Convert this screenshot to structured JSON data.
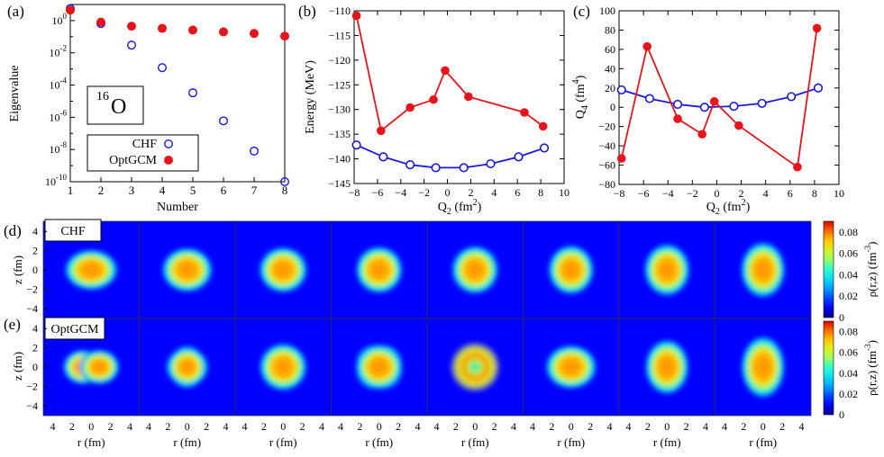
{
  "colors": {
    "chf": "#1a1ad6",
    "optgcm": "#e8141a"
  },
  "chart_data": [
    {
      "id": "a",
      "panel_label": "(a)",
      "type": "scatter",
      "title": "",
      "annotation_sup": "16",
      "annotation_main": "O",
      "xlabel": "Number",
      "ylabel": "Eigenvalue",
      "x_ticks": [
        "1",
        "2",
        "3",
        "4",
        "5",
        "6",
        "7",
        "8"
      ],
      "xlim": [
        1,
        8
      ],
      "y_scale": "log",
      "ylim_exp": [
        -10,
        1
      ],
      "y_tick_exps": [
        0,
        -2,
        -4,
        -6,
        -8,
        -10
      ],
      "legend": [
        {
          "name": "CHF",
          "marker": "open-circle"
        },
        {
          "name": "OptGCM",
          "marker": "filled-circle"
        }
      ],
      "legend_position": "bottom-left",
      "series": [
        {
          "name": "CHF",
          "x": [
            1,
            2,
            3,
            4,
            5,
            6,
            7,
            8
          ],
          "values": [
            5.6,
            0.65,
            0.03,
            0.0012,
            3.3e-05,
            6e-07,
            8e-09,
            1e-10
          ]
        },
        {
          "name": "OptGCM",
          "x": [
            1,
            2,
            3,
            4,
            5,
            6,
            7,
            8
          ],
          "values": [
            4.5,
            0.8,
            0.45,
            0.33,
            0.26,
            0.2,
            0.16,
            0.11
          ]
        }
      ]
    },
    {
      "id": "b",
      "panel_label": "(b)",
      "type": "line",
      "title": "",
      "xlabel_main": "Q",
      "xlabel_sub": "2",
      "xlabel_unit_pre": " (fm",
      "xlabel_unit_sup": "2",
      "xlabel_unit_post": ")",
      "ylabel": "Energy (MeV)",
      "xlim": [
        -8,
        10
      ],
      "ylim": [
        -145,
        -110
      ],
      "x_ticks": [
        -8,
        -6,
        -4,
        -2,
        0,
        2,
        4,
        6,
        8,
        10
      ],
      "y_ticks": [
        -145,
        -140,
        -135,
        -130,
        -125,
        -120,
        -115,
        -110
      ],
      "series": [
        {
          "name": "CHF",
          "x": [
            -7.8,
            -5.5,
            -3.2,
            -1.0,
            1.4,
            3.7,
            6.1,
            8.3
          ],
          "values": [
            -137.2,
            -139.6,
            -141.2,
            -141.8,
            -141.8,
            -141.0,
            -139.6,
            -137.8
          ]
        },
        {
          "name": "OptGCM",
          "x": [
            -7.8,
            -5.7,
            -3.2,
            -1.2,
            -0.2,
            1.8,
            6.6,
            8.2
          ],
          "values": [
            -111.0,
            -134.3,
            -129.6,
            -128.0,
            -122.1,
            -127.4,
            -130.6,
            -133.4
          ]
        }
      ]
    },
    {
      "id": "c",
      "panel_label": "(c)",
      "type": "line",
      "title": "",
      "xlabel_main": "Q",
      "xlabel_sub": "2",
      "xlabel_unit_pre": " (fm",
      "xlabel_unit_sup": "2",
      "xlabel_unit_post": ")",
      "ylabel_main": "Q",
      "ylabel_sub": "4",
      "ylabel_unit_pre": " (fm",
      "ylabel_unit_sup": "4",
      "ylabel_unit_post": ")",
      "xlim": [
        -8,
        10
      ],
      "ylim": [
        -80,
        100
      ],
      "x_ticks": [
        -8,
        -6,
        -4,
        -2,
        0,
        2,
        4,
        6,
        8,
        10
      ],
      "y_ticks": [
        -80,
        -60,
        -40,
        -20,
        0,
        20,
        40,
        60,
        80,
        100
      ],
      "series": [
        {
          "name": "CHF",
          "x": [
            -7.8,
            -5.5,
            -3.2,
            -1.0,
            1.4,
            3.7,
            6.1,
            8.3
          ],
          "values": [
            18,
            9,
            3,
            0,
            1,
            4,
            11,
            20
          ]
        },
        {
          "name": "OptGCM",
          "x": [
            -7.8,
            -5.7,
            -3.2,
            -1.2,
            -0.2,
            1.8,
            6.6,
            8.2
          ],
          "values": [
            -53,
            63,
            -12,
            -28,
            6,
            -19,
            -62,
            82
          ]
        }
      ]
    },
    {
      "id": "d",
      "panel_label": "(d)",
      "type": "heatmap",
      "tag": "CHF",
      "ylabel": "z (fm)",
      "y_ticks": [
        "4",
        "2",
        "0",
        "-2",
        "-4"
      ],
      "colorbar_label_pre": "ρ(r,z) (fm",
      "colorbar_label_sup": "-3",
      "colorbar_label_post": ")",
      "colorbar_ticks": [
        "0.08",
        "0.06",
        "0.04",
        "0.02",
        "0"
      ],
      "range": [
        0,
        0.09
      ],
      "panels": [
        {
          "rx": 2.1,
          "rz": 1.6
        },
        {
          "rx": 2.0,
          "rz": 1.75
        },
        {
          "rx": 1.9,
          "rz": 1.8
        },
        {
          "rx": 1.85,
          "rz": 1.85
        },
        {
          "rx": 1.85,
          "rz": 1.9
        },
        {
          "rx": 1.8,
          "rz": 1.95
        },
        {
          "rx": 1.8,
          "rz": 2.05
        },
        {
          "rx": 1.75,
          "rz": 2.2
        }
      ]
    },
    {
      "id": "e",
      "panel_label": "(e)",
      "type": "heatmap",
      "tag": "OptGCM",
      "ylabel": "z (fm)",
      "y_ticks": [
        "4",
        "2",
        "0",
        "-2",
        "-4"
      ],
      "xlabel": "r (fm)",
      "x_ticks": [
        "4",
        "2",
        "0",
        "2",
        "4"
      ],
      "colorbar_label_pre": "ρ(r,z) (fm",
      "colorbar_label_sup": "-3",
      "colorbar_label_post": ")",
      "colorbar_ticks": [
        "0.08",
        "0.06",
        "0.04",
        "0.02",
        "0"
      ],
      "range": [
        0,
        0.09
      ],
      "panels": [
        {
          "shape": "twin-horizontal"
        },
        {
          "shape": "diamond"
        },
        {
          "shape": "round"
        },
        {
          "shape": "square"
        },
        {
          "shape": "ring"
        },
        {
          "shape": "twin-soft"
        },
        {
          "shape": "vertical-lobes"
        },
        {
          "shape": "tall"
        }
      ]
    }
  ]
}
